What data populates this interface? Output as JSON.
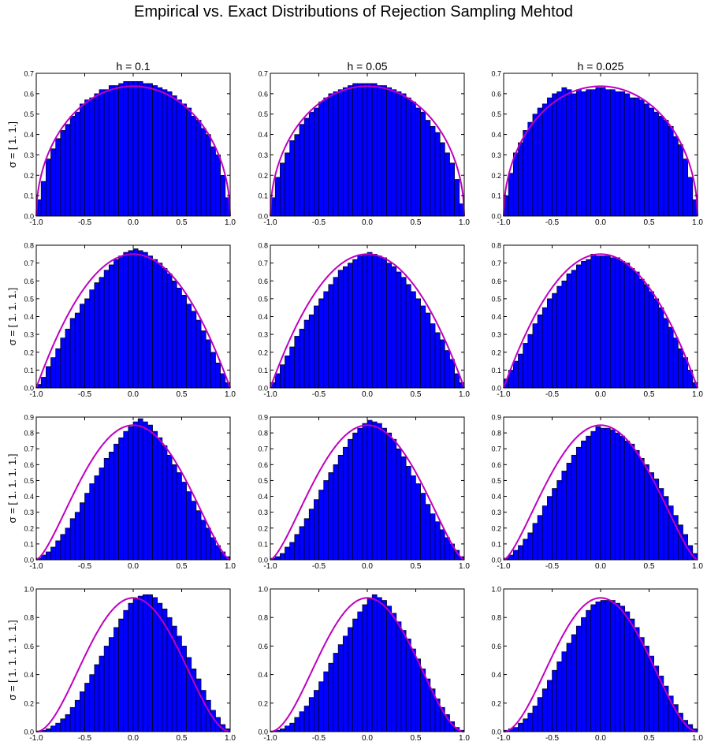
{
  "figure": {
    "title": "Empirical vs. Exact Distributions of Rejection Sampling Mehtod"
  },
  "colors": {
    "bar_fill": "#0000ff",
    "bar_edge": "#000000",
    "curve": "#c000c0",
    "axes": "#000000",
    "background": "#ffffff"
  },
  "chart_data": {
    "type": "bar",
    "layout": "grid-4x3",
    "column_titles": [
      "h = 0.1",
      "h = 0.05",
      "h = 0.025"
    ],
    "row_labels": [
      "σ = [ 1.  1.]",
      "σ = [ 1.  1.  1.]",
      "σ = [ 1.  1.  1.  1.]",
      "σ = [ 1.  1.  1.  1.  1.]"
    ],
    "xlim": [
      -1.0,
      1.0
    ],
    "xticks": [
      "-1.0",
      "-0.5",
      "0.0",
      "0.5",
      "1.0"
    ],
    "rows": [
      {
        "ylim": [
          0,
          0.7
        ],
        "yticks": [
          "0.0",
          "0.1",
          "0.2",
          "0.3",
          "0.4",
          "0.5",
          "0.6",
          "0.7"
        ],
        "exact_peak": 0.637,
        "series_note": "semicircle",
        "bins": 40,
        "panels": [
          {
            "column": "h = 0.1",
            "values": [
              0.08,
              0.17,
              0.28,
              0.33,
              0.38,
              0.42,
              0.45,
              0.49,
              0.51,
              0.55,
              0.57,
              0.58,
              0.6,
              0.62,
              0.62,
              0.64,
              0.64,
              0.65,
              0.66,
              0.66,
              0.66,
              0.66,
              0.65,
              0.65,
              0.64,
              0.63,
              0.62,
              0.61,
              0.59,
              0.57,
              0.55,
              0.53,
              0.49,
              0.47,
              0.43,
              0.4,
              0.34,
              0.3,
              0.2,
              0.09
            ]
          },
          {
            "column": "h = 0.05",
            "values": [
              0.09,
              0.19,
              0.26,
              0.31,
              0.37,
              0.4,
              0.45,
              0.48,
              0.51,
              0.53,
              0.56,
              0.58,
              0.6,
              0.61,
              0.62,
              0.63,
              0.64,
              0.65,
              0.65,
              0.65,
              0.65,
              0.65,
              0.64,
              0.64,
              0.63,
              0.62,
              0.61,
              0.6,
              0.58,
              0.56,
              0.53,
              0.51,
              0.47,
              0.44,
              0.41,
              0.36,
              0.31,
              0.26,
              0.18,
              0.06
            ]
          },
          {
            "column": "h = 0.025",
            "values": [
              0.1,
              0.21,
              0.31,
              0.36,
              0.42,
              0.46,
              0.5,
              0.53,
              0.55,
              0.58,
              0.6,
              0.61,
              0.63,
              0.62,
              0.6,
              0.62,
              0.61,
              0.62,
              0.62,
              0.63,
              0.63,
              0.62,
              0.62,
              0.61,
              0.61,
              0.6,
              0.58,
              0.58,
              0.57,
              0.55,
              0.53,
              0.51,
              0.49,
              0.47,
              0.44,
              0.39,
              0.35,
              0.28,
              0.19,
              0.08
            ]
          }
        ]
      },
      {
        "ylim": [
          0,
          0.8
        ],
        "yticks": [
          "0.0",
          "0.1",
          "0.2",
          "0.3",
          "0.4",
          "0.5",
          "0.6",
          "0.7",
          "0.8"
        ],
        "exact_peak": 0.75,
        "series_note": "parabola",
        "bins": 40,
        "panels": [
          {
            "column": "h = 0.1",
            "values": [
              0.02,
              0.06,
              0.12,
              0.17,
              0.22,
              0.28,
              0.33,
              0.39,
              0.42,
              0.47,
              0.5,
              0.55,
              0.59,
              0.62,
              0.66,
              0.69,
              0.72,
              0.74,
              0.76,
              0.77,
              0.78,
              0.77,
              0.76,
              0.74,
              0.72,
              0.7,
              0.67,
              0.64,
              0.6,
              0.56,
              0.52,
              0.47,
              0.43,
              0.38,
              0.32,
              0.27,
              0.2,
              0.14,
              0.08,
              0.03
            ]
          },
          {
            "column": "h = 0.05",
            "values": [
              0.03,
              0.08,
              0.13,
              0.18,
              0.23,
              0.29,
              0.33,
              0.38,
              0.41,
              0.46,
              0.5,
              0.54,
              0.58,
              0.62,
              0.66,
              0.68,
              0.7,
              0.72,
              0.74,
              0.75,
              0.76,
              0.75,
              0.74,
              0.73,
              0.7,
              0.68,
              0.65,
              0.62,
              0.58,
              0.54,
              0.5,
              0.46,
              0.42,
              0.36,
              0.31,
              0.27,
              0.21,
              0.16,
              0.08,
              0.03
            ]
          },
          {
            "column": "h = 0.025",
            "values": [
              0.05,
              0.1,
              0.15,
              0.19,
              0.25,
              0.3,
              0.36,
              0.41,
              0.45,
              0.5,
              0.53,
              0.57,
              0.6,
              0.64,
              0.66,
              0.69,
              0.71,
              0.72,
              0.75,
              0.74,
              0.74,
              0.74,
              0.73,
              0.73,
              0.71,
              0.7,
              0.67,
              0.65,
              0.61,
              0.58,
              0.54,
              0.5,
              0.45,
              0.39,
              0.34,
              0.28,
              0.22,
              0.17,
              0.1,
              0.03
            ]
          }
        ]
      },
      {
        "ylim": [
          0,
          0.9
        ],
        "yticks": [
          "0.0",
          "0.1",
          "0.2",
          "0.3",
          "0.4",
          "0.5",
          "0.6",
          "0.7",
          "0.8",
          "0.9"
        ],
        "exact_peak": 0.849,
        "series_note": "cosine-like",
        "bins": 40,
        "panels": [
          {
            "column": "h = 0.1",
            "values": [
              0.01,
              0.03,
              0.05,
              0.08,
              0.12,
              0.16,
              0.2,
              0.26,
              0.3,
              0.36,
              0.42,
              0.48,
              0.53,
              0.58,
              0.64,
              0.68,
              0.73,
              0.77,
              0.81,
              0.84,
              0.87,
              0.89,
              0.87,
              0.85,
              0.81,
              0.77,
              0.72,
              0.66,
              0.6,
              0.55,
              0.49,
              0.43,
              0.37,
              0.31,
              0.25,
              0.2,
              0.14,
              0.09,
              0.05,
              0.02
            ]
          },
          {
            "column": "h = 0.05",
            "values": [
              0.01,
              0.02,
              0.04,
              0.08,
              0.11,
              0.16,
              0.21,
              0.26,
              0.32,
              0.38,
              0.44,
              0.5,
              0.55,
              0.6,
              0.66,
              0.71,
              0.76,
              0.8,
              0.83,
              0.86,
              0.88,
              0.87,
              0.86,
              0.83,
              0.8,
              0.76,
              0.7,
              0.65,
              0.59,
              0.53,
              0.48,
              0.42,
              0.35,
              0.29,
              0.24,
              0.19,
              0.14,
              0.1,
              0.06,
              0.02
            ]
          },
          {
            "column": "h = 0.025",
            "values": [
              0.01,
              0.03,
              0.06,
              0.09,
              0.13,
              0.17,
              0.23,
              0.28,
              0.34,
              0.4,
              0.45,
              0.5,
              0.56,
              0.61,
              0.66,
              0.71,
              0.75,
              0.78,
              0.81,
              0.84,
              0.83,
              0.83,
              0.82,
              0.8,
              0.78,
              0.75,
              0.73,
              0.69,
              0.64,
              0.6,
              0.55,
              0.51,
              0.45,
              0.4,
              0.34,
              0.28,
              0.22,
              0.16,
              0.09,
              0.04
            ]
          }
        ]
      },
      {
        "ylim": [
          0,
          1.0
        ],
        "yticks": [
          "0.0",
          "0.2",
          "0.4",
          "0.6",
          "0.8",
          "1.0"
        ],
        "exact_peak": 0.9375,
        "series_note": "quartic-like",
        "bins": 40,
        "panels": [
          {
            "column": "h = 0.1",
            "values": [
              0.005,
              0.01,
              0.02,
              0.04,
              0.06,
              0.09,
              0.12,
              0.17,
              0.22,
              0.28,
              0.34,
              0.4,
              0.47,
              0.53,
              0.6,
              0.66,
              0.73,
              0.79,
              0.85,
              0.9,
              0.93,
              0.95,
              0.96,
              0.96,
              0.94,
              0.9,
              0.86,
              0.8,
              0.74,
              0.67,
              0.6,
              0.52,
              0.44,
              0.37,
              0.29,
              0.22,
              0.15,
              0.1,
              0.05,
              0.02
            ]
          },
          {
            "column": "h = 0.05",
            "values": [
              0.005,
              0.01,
              0.02,
              0.04,
              0.06,
              0.1,
              0.14,
              0.18,
              0.24,
              0.29,
              0.35,
              0.42,
              0.48,
              0.55,
              0.61,
              0.67,
              0.73,
              0.79,
              0.84,
              0.89,
              0.93,
              0.96,
              0.94,
              0.92,
              0.88,
              0.83,
              0.77,
              0.71,
              0.65,
              0.58,
              0.51,
              0.44,
              0.37,
              0.3,
              0.23,
              0.17,
              0.12,
              0.07,
              0.03,
              0.01
            ]
          },
          {
            "column": "h = 0.025",
            "values": [
              0.01,
              0.02,
              0.03,
              0.06,
              0.09,
              0.13,
              0.18,
              0.24,
              0.3,
              0.36,
              0.43,
              0.49,
              0.56,
              0.62,
              0.68,
              0.74,
              0.8,
              0.85,
              0.89,
              0.91,
              0.92,
              0.92,
              0.92,
              0.9,
              0.88,
              0.84,
              0.79,
              0.73,
              0.66,
              0.6,
              0.53,
              0.46,
              0.39,
              0.32,
              0.25,
              0.19,
              0.13,
              0.08,
              0.05,
              0.02
            ]
          }
        ]
      }
    ]
  }
}
